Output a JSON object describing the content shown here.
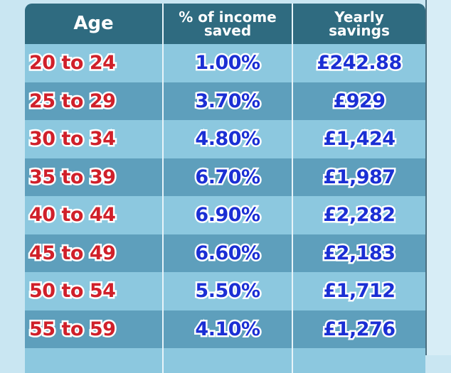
{
  "table": {
    "header": [
      "Age",
      "% of income saved",
      "Yearly savings"
    ],
    "rows": [
      [
        "20 to 24",
        "1.00%",
        "£242.88"
      ],
      [
        "25 to 29",
        "3.70%",
        "£929"
      ],
      [
        "30 to 34",
        "4.80%",
        "£1,424"
      ],
      [
        "35 to 39",
        "6.70%",
        "£1,987"
      ],
      [
        "40 to 44",
        "6.90%",
        "£2,282"
      ],
      [
        "45 to 49",
        "6.60%",
        "£2,183"
      ],
      [
        "50 to 54",
        "5.50%",
        "£1,712"
      ],
      [
        "55 to 59",
        "4.10%",
        "£1,276"
      ]
    ]
  }
}
